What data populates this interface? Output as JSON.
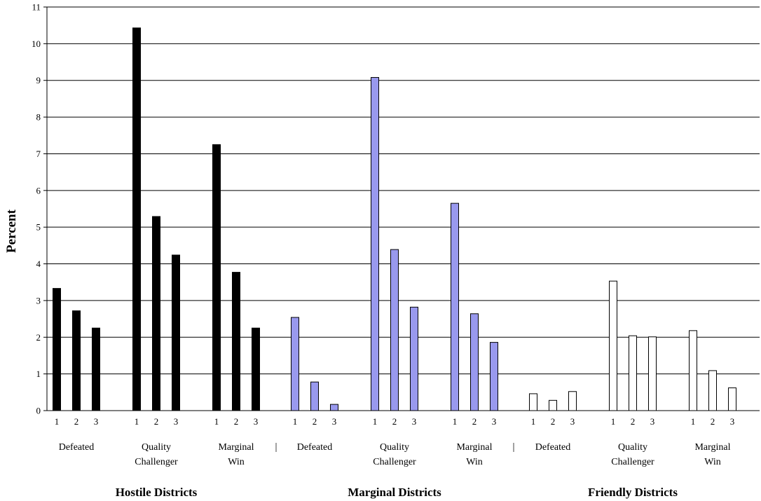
{
  "chart_data": {
    "type": "bar",
    "ylabel": "Percent",
    "ylim": [
      0,
      11
    ],
    "yticks": [
      0,
      1,
      2,
      3,
      4,
      5,
      6,
      7,
      8,
      9,
      10,
      11
    ],
    "grid": true,
    "bar_labels": [
      "1",
      "2",
      "3"
    ],
    "separator": "|",
    "groups": [
      {
        "name": "Hostile Districts",
        "color": "#000000",
        "categories": [
          {
            "label_lines": [
              "Defeated"
            ],
            "values": [
              3.33,
              2.72,
              2.25
            ]
          },
          {
            "label_lines": [
              "Quality",
              "Challenger"
            ],
            "values": [
              10.43,
              5.29,
              4.24
            ]
          },
          {
            "label_lines": [
              "Marginal",
              "Win"
            ],
            "values": [
              7.25,
              3.77,
              2.25
            ]
          }
        ]
      },
      {
        "name": "Marginal Districts",
        "color": "#9999ee",
        "categories": [
          {
            "label_lines": [
              "Defeated"
            ],
            "values": [
              2.54,
              0.78,
              0.17
            ]
          },
          {
            "label_lines": [
              "Quality",
              "Challenger"
            ],
            "values": [
              9.08,
              4.39,
              2.82
            ]
          },
          {
            "label_lines": [
              "Marginal",
              "Win"
            ],
            "values": [
              5.65,
              2.64,
              1.86
            ]
          }
        ]
      },
      {
        "name": "Friendly Districts",
        "color": "#ffffff",
        "categories": [
          {
            "label_lines": [
              "Defeated"
            ],
            "values": [
              0.46,
              0.28,
              0.52
            ]
          },
          {
            "label_lines": [
              "Quality",
              "Challenger"
            ],
            "values": [
              3.53,
              2.04,
              2.01
            ]
          },
          {
            "label_lines": [
              "Marginal",
              "Win"
            ],
            "values": [
              2.18,
              1.09,
              0.62
            ]
          }
        ]
      }
    ]
  }
}
